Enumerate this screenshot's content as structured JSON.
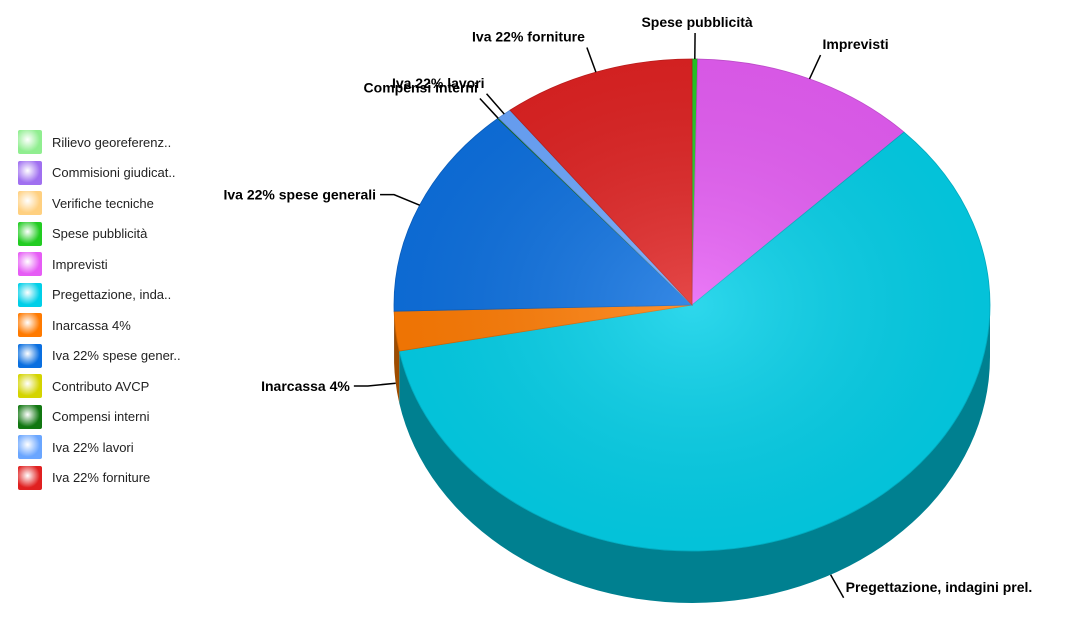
{
  "chart_data": {
    "type": "pie",
    "style": "3d",
    "slices": [
      {
        "name": "Rilievo georeferenz..",
        "value": 0.0,
        "color": "#90ee90"
      },
      {
        "name": "Commisioni giudicat..",
        "value": 0.0,
        "color": "#a070f0"
      },
      {
        "name": "Verifiche tecniche",
        "value": 0.0,
        "color": "#ffd080"
      },
      {
        "name": "Spese pubblicità",
        "label": "Spese pubblicità",
        "value": 0.3,
        "color": "#22cc22"
      },
      {
        "name": "Imprevisti",
        "label": "Imprevisti",
        "value": 12.3,
        "color": "#e65cf5"
      },
      {
        "name": "Pregettazione, inda..",
        "label": "Pregettazione, indagini prel.",
        "value": 59.4,
        "color": "#00cfe8"
      },
      {
        "name": "Inarcassa 4%",
        "label": "Inarcassa 4%",
        "value": 2.6,
        "color": "#ff7a00"
      },
      {
        "name": "Iva 22% spese gener..",
        "label": "Iva 22% spese generali",
        "value": 14.1,
        "color": "#0a6fe0"
      },
      {
        "name": "Contributo AVCP",
        "value": 0.0,
        "color": "#d4d400"
      },
      {
        "name": "Compensi interni",
        "label": "Compensi interni",
        "value": 0.05,
        "color": "#117711"
      },
      {
        "name": "Iva 22% lavori",
        "label": "Iva 22% lavori",
        "value": 0.8,
        "color": "#6aa6ff"
      },
      {
        "name": "Iva 22% forniture",
        "label": "Iva 22% forniture",
        "value": 10.45,
        "color": "#e02020"
      }
    ],
    "legend_position": "left"
  }
}
